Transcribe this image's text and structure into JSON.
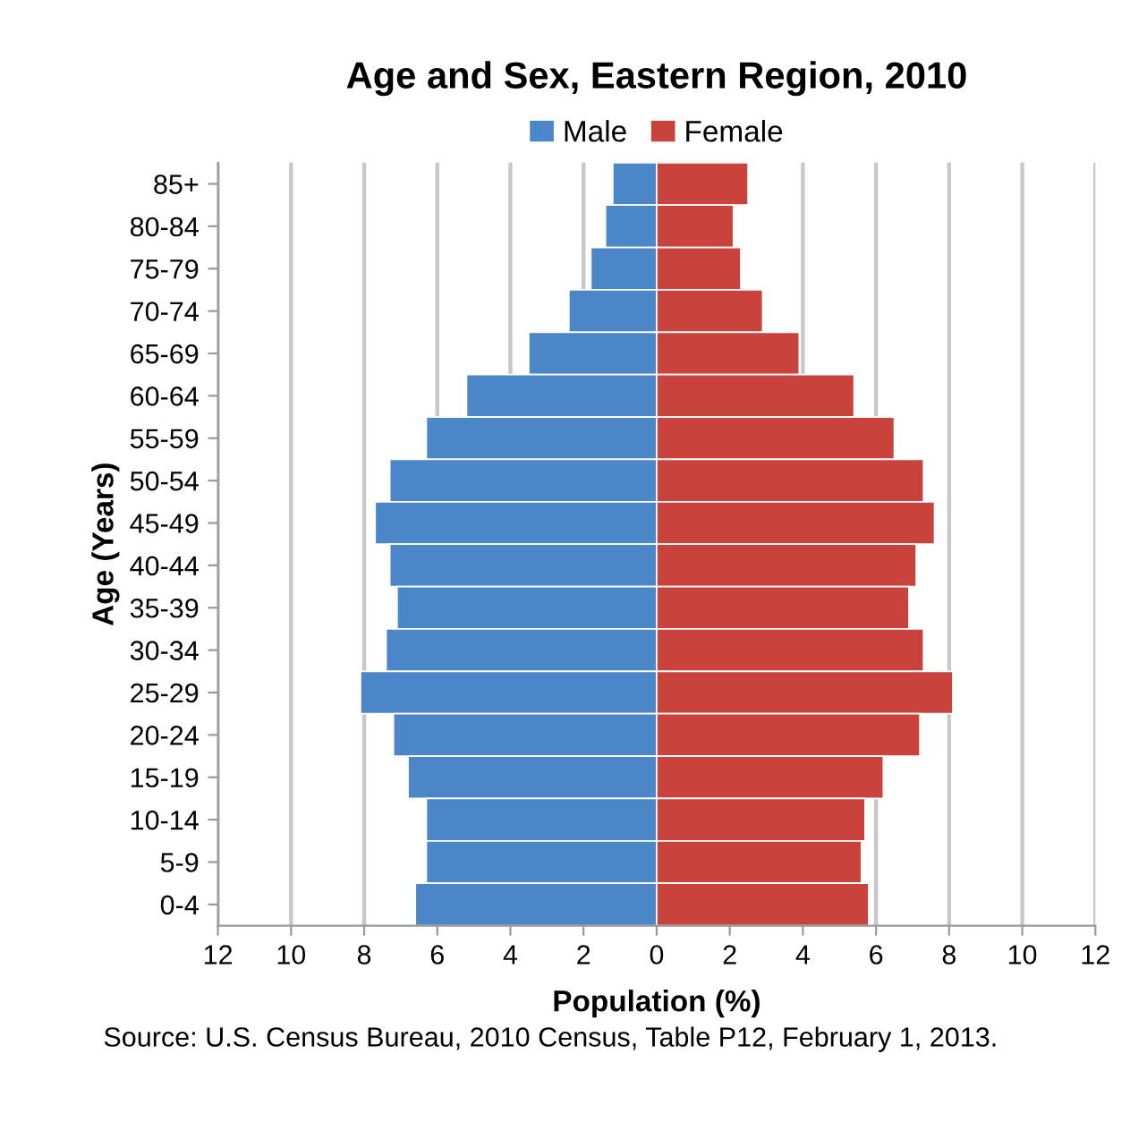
{
  "chart_data": {
    "type": "bar",
    "orientation": "horizontal",
    "stacked": true,
    "title": "Age and Sex, Eastern Region, 2010",
    "xlabel": "Population (%)",
    "ylabel": "Age (Years)",
    "categories": [
      "85+",
      "80-84",
      "75-79",
      "70-74",
      "65-69",
      "60-64",
      "55-59",
      "50-54",
      "45-49",
      "40-44",
      "35-39",
      "30-34",
      "25-29",
      "20-24",
      "15-19",
      "10-14",
      "5-9",
      "0-4"
    ],
    "series": [
      {
        "name": "Male",
        "color": "#4a86c8",
        "values": [
          -1.2,
          -1.4,
          -1.8,
          -2.4,
          -3.5,
          -5.2,
          -6.3,
          -7.3,
          -7.7,
          -7.3,
          -7.1,
          -7.4,
          -8.1,
          -7.2,
          -6.8,
          -6.3,
          -6.3,
          -6.6
        ]
      },
      {
        "name": "Female",
        "color": "#c9433c",
        "values": [
          2.5,
          2.1,
          2.3,
          2.9,
          3.9,
          5.4,
          6.5,
          7.3,
          7.6,
          7.1,
          6.9,
          7.3,
          8.1,
          7.2,
          6.2,
          5.7,
          5.6,
          5.8
        ]
      }
    ],
    "xlim": [
      -12,
      12
    ],
    "xticks": [
      {
        "value": -12,
        "label": "12"
      },
      {
        "value": -10,
        "label": "10"
      },
      {
        "value": -8,
        "label": "8"
      },
      {
        "value": -6,
        "label": "6"
      },
      {
        "value": -4,
        "label": "4"
      },
      {
        "value": -2,
        "label": "2"
      },
      0,
      2,
      4,
      6,
      8,
      10,
      12
    ],
    "grid": "x",
    "legend": "top",
    "annotations": [
      "Source: U.S. Census Bureau, 2010 Census, Table P12, February 1, 2013."
    ]
  }
}
